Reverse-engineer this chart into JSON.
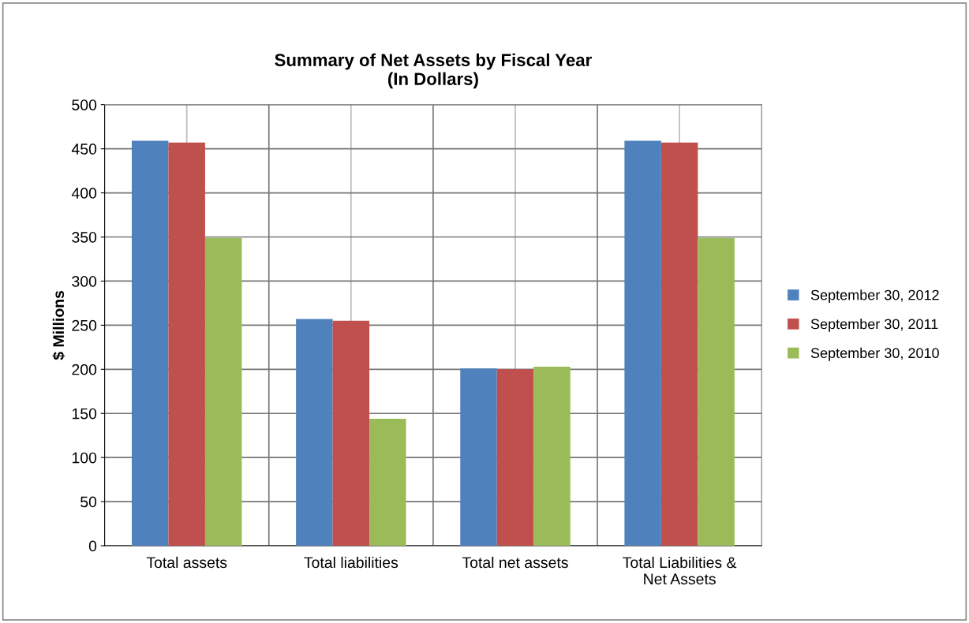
{
  "chart_data": {
    "type": "bar",
    "title": "Summary of Net Assets by Fiscal Year\n(In Dollars)",
    "ylabel": "$ Millions",
    "categories": [
      "Total assets",
      "Total liabilities",
      "Total net assets",
      "Total Liabilities &\nNet Assets"
    ],
    "series": [
      {
        "name": "September 30, 2012",
        "color": "#4f81bd",
        "values": [
          459,
          257,
          201,
          459
        ]
      },
      {
        "name": "September 30, 2011",
        "color": "#c0504d",
        "values": [
          457,
          255,
          200,
          457
        ]
      },
      {
        "name": "September 30, 2010",
        "color": "#9bbb59",
        "values": [
          349,
          144,
          203,
          349
        ]
      }
    ],
    "ylim": [
      0,
      500
    ],
    "yticks": [
      0,
      50,
      100,
      150,
      200,
      250,
      300,
      350,
      400,
      450,
      500
    ],
    "grid": true,
    "legend": "right"
  }
}
